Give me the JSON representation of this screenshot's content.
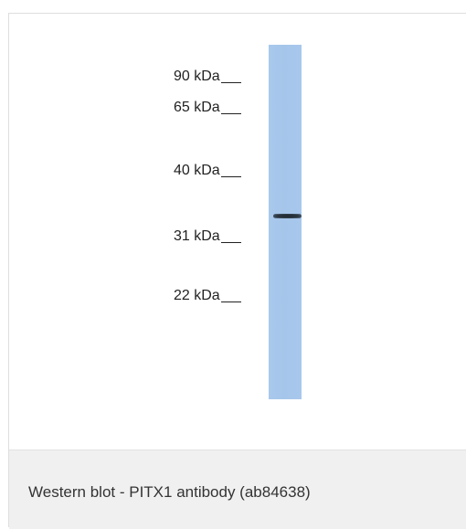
{
  "figure": {
    "markers": [
      {
        "label": "90 kDa"
      },
      {
        "label": "65 kDa"
      },
      {
        "label": "40 kDa"
      },
      {
        "label": "31 kDa"
      },
      {
        "label": "22 kDa"
      }
    ],
    "lane_color": "#a8c7ec",
    "band_color": "#26313b",
    "caption": "Western blot - PITX1 antibody (ab84638)"
  }
}
